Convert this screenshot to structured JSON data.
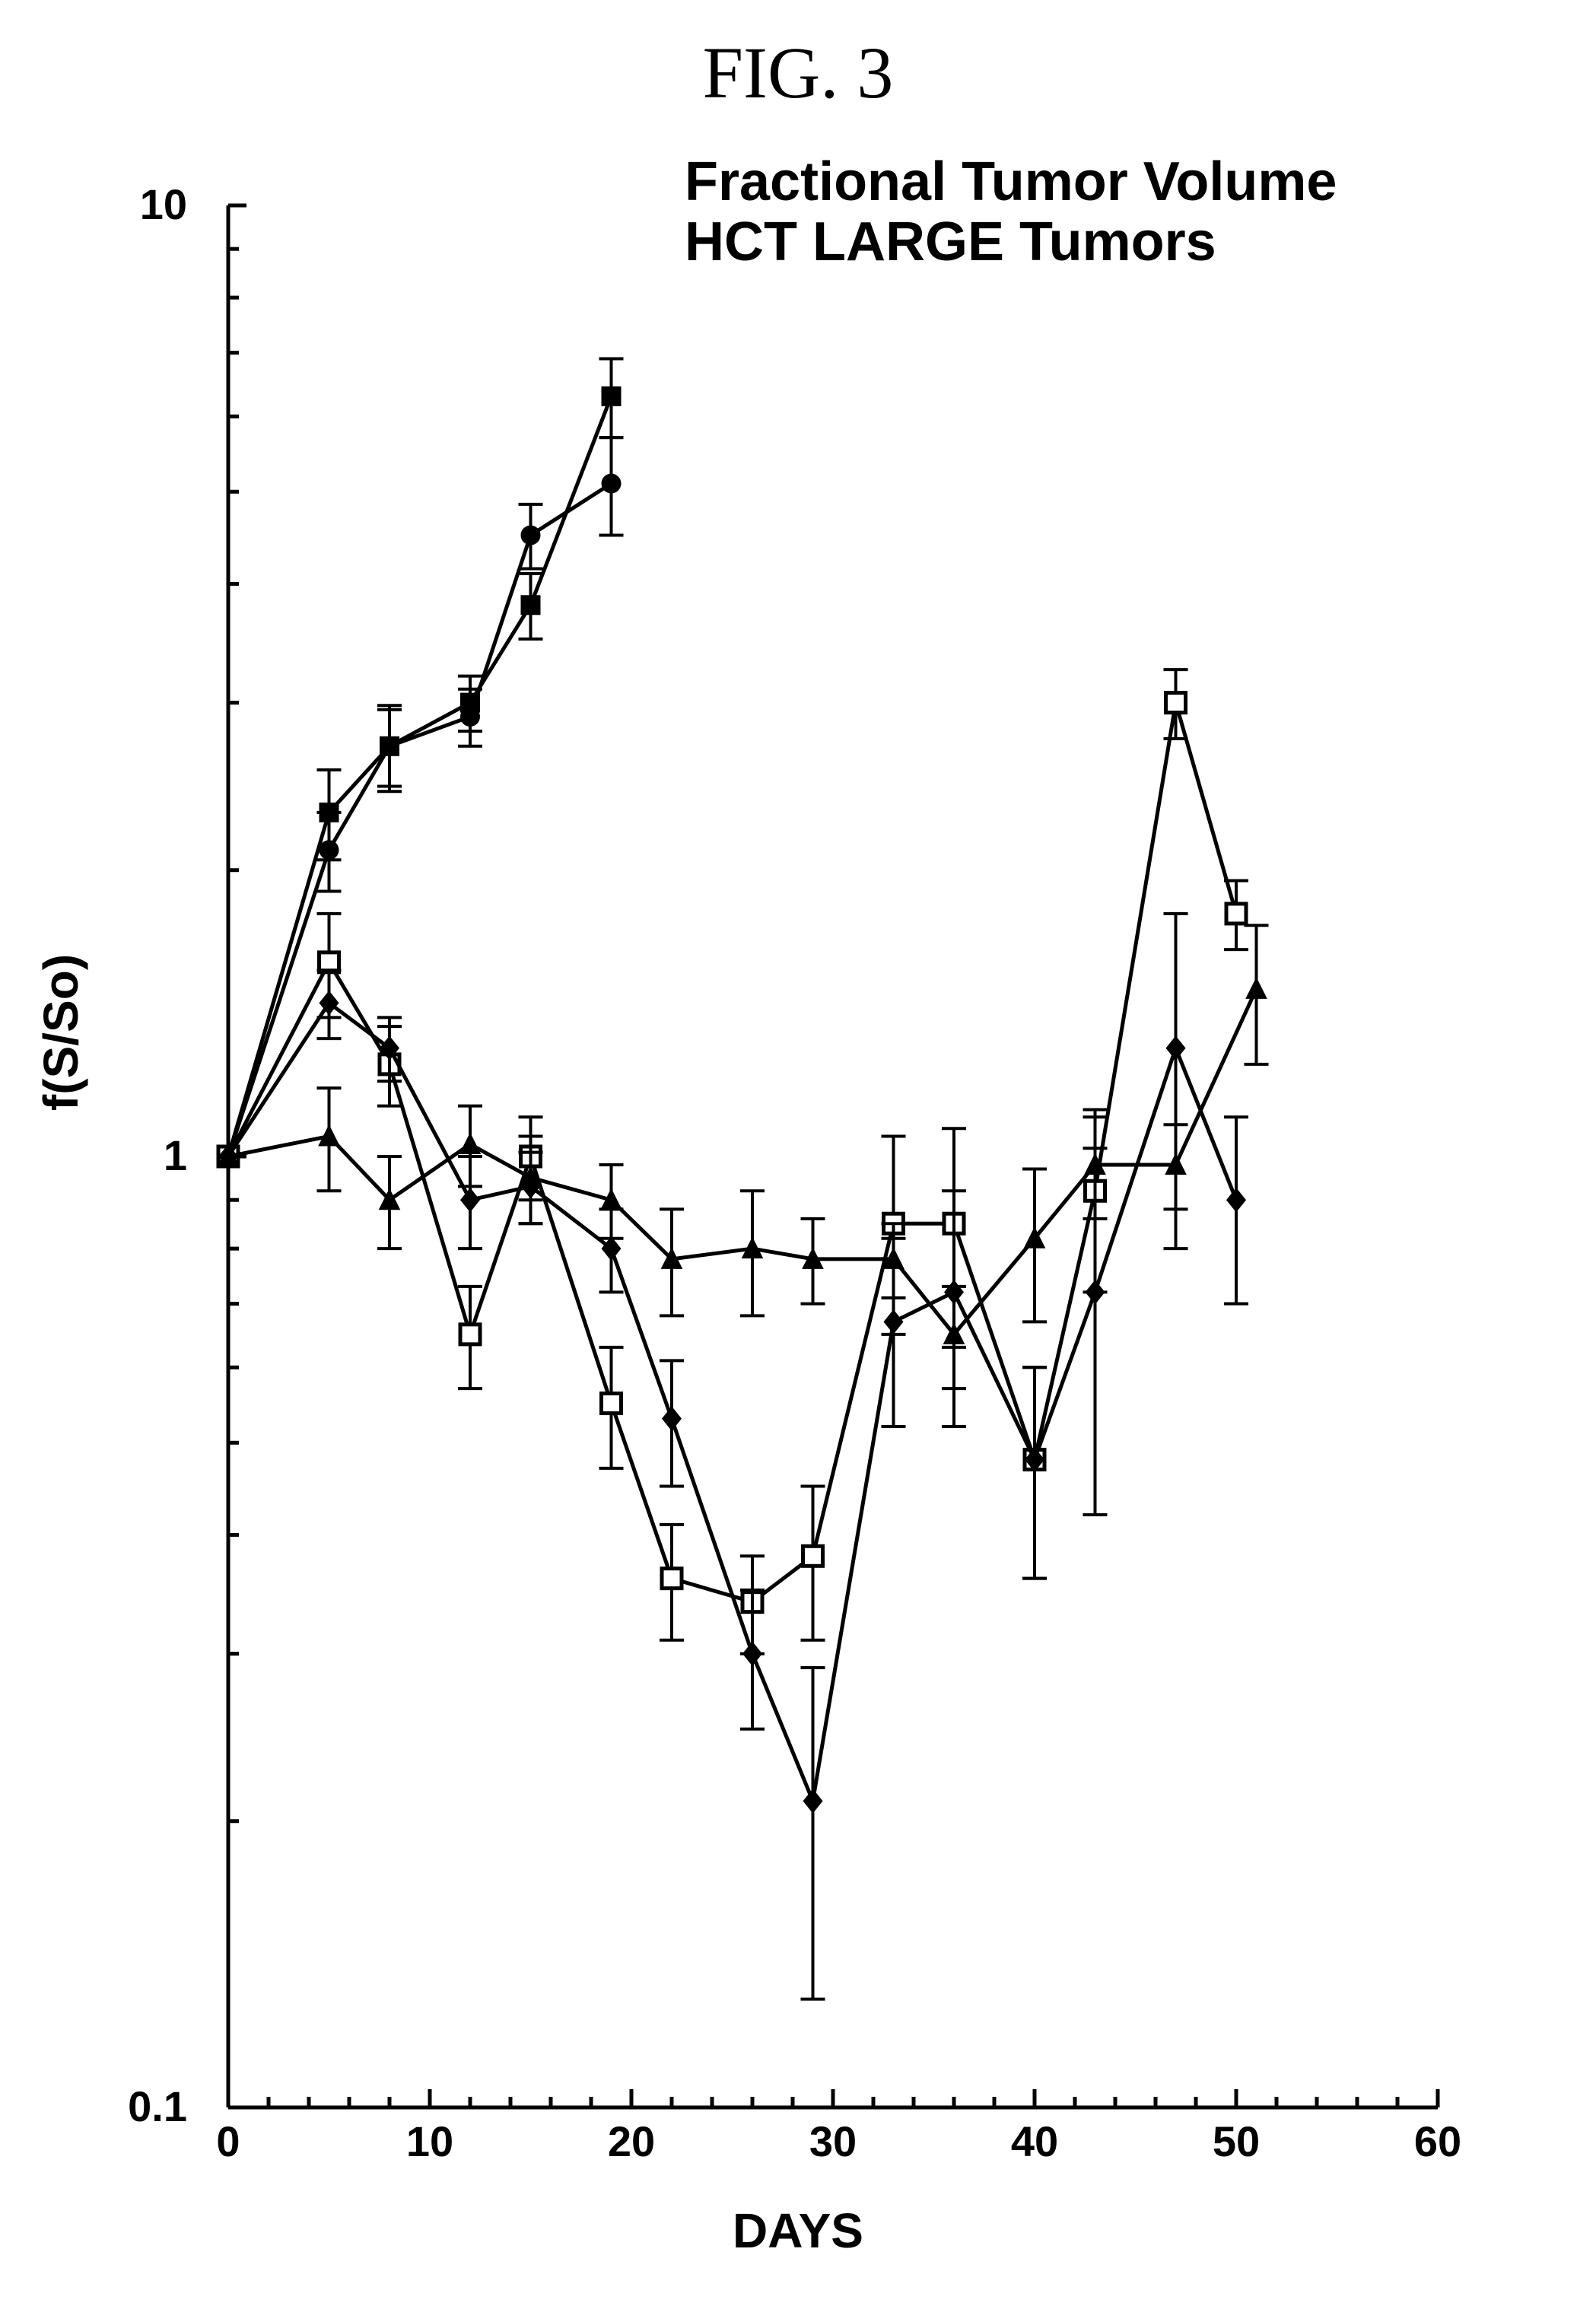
{
  "figure_label": "FIG. 3",
  "chart": {
    "type": "line",
    "title_line1": "Fractional Tumor Volume",
    "title_line2": "HCT LARGE Tumors",
    "title_fontsize": 72,
    "title_fontfamily": "Arial, Helvetica, sans-serif",
    "title_fontweight": "bold",
    "figlabel_fontsize": 96,
    "figlabel_fontfamily": "Times New Roman",
    "x_axis": {
      "label": "DAYS",
      "label_fontsize": 64,
      "scale": "linear",
      "min": 0,
      "max": 60,
      "ticks": [
        0,
        10,
        20,
        30,
        40,
        50,
        60
      ],
      "tick_fontsize": 56
    },
    "y_axis": {
      "label": "f(S/So)",
      "label_fontsize": 64,
      "scale": "log",
      "min": 0.1,
      "max": 10,
      "major_ticks": [
        0.1,
        1,
        10
      ],
      "tick_fontsize": 56
    },
    "axis_line_width": 5,
    "tick_length_major": 24,
    "tick_length_minor": 14,
    "colors": {
      "background": "#ffffff",
      "axis": "#000000",
      "series": "#000000",
      "text": "#000000"
    },
    "line_width": 5,
    "error_bar_width": 4,
    "error_cap_halfwidth": 16,
    "marker_size": 26,
    "series": [
      {
        "name": "filled-square",
        "marker": "square-filled",
        "points": [
          {
            "x": 0,
            "y": 1.0,
            "err": 0.0
          },
          {
            "x": 5,
            "y": 2.3,
            "err": 0.25
          },
          {
            "x": 8,
            "y": 2.7,
            "err": 0.28
          },
          {
            "x": 12,
            "y": 3.0,
            "err": 0.2
          },
          {
            "x": 15,
            "y": 3.8,
            "err": 0.3
          },
          {
            "x": 19,
            "y": 6.3,
            "err": 0.6
          }
        ]
      },
      {
        "name": "filled-circle",
        "marker": "circle-filled",
        "points": [
          {
            "x": 0,
            "y": 1.0,
            "err": 0.0
          },
          {
            "x": 5,
            "y": 2.1,
            "err": 0.2
          },
          {
            "x": 8,
            "y": 2.7,
            "err": 0.25
          },
          {
            "x": 12,
            "y": 2.9,
            "err": 0.2
          },
          {
            "x": 15,
            "y": 4.5,
            "err": 0.35
          },
          {
            "x": 19,
            "y": 5.1,
            "err": 0.6
          }
        ]
      },
      {
        "name": "open-square",
        "marker": "square-open",
        "points": [
          {
            "x": 0,
            "y": 1.0,
            "err": 0.0
          },
          {
            "x": 5,
            "y": 1.6,
            "err": 0.2
          },
          {
            "x": 8,
            "y": 1.25,
            "err": 0.12
          },
          {
            "x": 12,
            "y": 0.65,
            "err": 0.08
          },
          {
            "x": 15,
            "y": 1.0,
            "err": 0.1
          },
          {
            "x": 19,
            "y": 0.55,
            "err": 0.08
          },
          {
            "x": 22,
            "y": 0.36,
            "err": 0.05
          },
          {
            "x": 26,
            "y": 0.34,
            "err": 0.04
          },
          {
            "x": 29,
            "y": 0.38,
            "err": 0.07
          },
          {
            "x": 33,
            "y": 0.85,
            "err": 0.2
          },
          {
            "x": 36,
            "y": 0.85,
            "err": 0.22
          },
          {
            "x": 40,
            "y": 0.48,
            "err": 0.12
          },
          {
            "x": 43,
            "y": 0.92,
            "err": 0.2
          },
          {
            "x": 47,
            "y": 3.0,
            "err": 0.25
          },
          {
            "x": 50,
            "y": 1.8,
            "err": 0.15
          }
        ]
      },
      {
        "name": "filled-triangle",
        "marker": "triangle-filled",
        "points": [
          {
            "x": 0,
            "y": 1.0,
            "err": 0.0
          },
          {
            "x": 5,
            "y": 1.05,
            "err": 0.13
          },
          {
            "x": 8,
            "y": 0.9,
            "err": 0.1
          },
          {
            "x": 12,
            "y": 1.03,
            "err": 0.1
          },
          {
            "x": 15,
            "y": 0.95,
            "err": 0.1
          },
          {
            "x": 19,
            "y": 0.9,
            "err": 0.08
          },
          {
            "x": 22,
            "y": 0.78,
            "err": 0.1
          },
          {
            "x": 26,
            "y": 0.8,
            "err": 0.12
          },
          {
            "x": 29,
            "y": 0.78,
            "err": 0.08
          },
          {
            "x": 33,
            "y": 0.78,
            "err": 0.07
          },
          {
            "x": 36,
            "y": 0.65,
            "err": 0.08
          },
          {
            "x": 40,
            "y": 0.82,
            "err": 0.15
          },
          {
            "x": 43,
            "y": 0.98,
            "err": 0.12
          },
          {
            "x": 47,
            "y": 0.98,
            "err": 0.1
          },
          {
            "x": 51,
            "y": 1.5,
            "err": 0.25
          }
        ]
      },
      {
        "name": "filled-diamond",
        "marker": "diamond-filled",
        "points": [
          {
            "x": 0,
            "y": 1.0,
            "err": 0.0
          },
          {
            "x": 5,
            "y": 1.45,
            "err": 0.12
          },
          {
            "x": 8,
            "y": 1.3,
            "err": 0.1
          },
          {
            "x": 12,
            "y": 0.9,
            "err": 0.1
          },
          {
            "x": 15,
            "y": 0.93,
            "err": 0.08
          },
          {
            "x": 19,
            "y": 0.8,
            "err": 0.08
          },
          {
            "x": 22,
            "y": 0.53,
            "err": 0.08
          },
          {
            "x": 26,
            "y": 0.3,
            "err": 0.05
          },
          {
            "x": 29,
            "y": 0.21,
            "err": 0.08
          },
          {
            "x": 33,
            "y": 0.67,
            "err": 0.15
          },
          {
            "x": 36,
            "y": 0.72,
            "err": 0.2
          },
          {
            "x": 40,
            "y": 0.48,
            "err": 0.12
          },
          {
            "x": 43,
            "y": 0.72,
            "err": 0.3
          },
          {
            "x": 47,
            "y": 1.3,
            "err": 0.5
          },
          {
            "x": 50,
            "y": 0.9,
            "err": 0.2
          }
        ]
      }
    ]
  }
}
